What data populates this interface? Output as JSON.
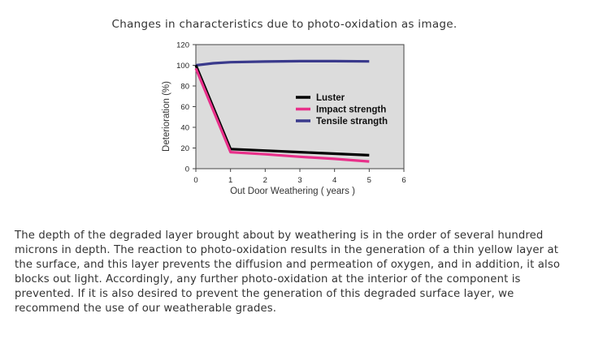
{
  "heading": "Changes in characteristics due to photo-oxidation as image.",
  "body_text": "The depth of the degraded layer brought about by weathering is in the order of several hundred microns in depth. The reaction to photo-oxidation results in the generation of a thin yellow layer at the surface, and this layer prevents the diffusion and permeation of oxygen, and in addition, it also blocks out light. Accordingly, any further photo-oxidation at the interior of the component is prevented. If it is also desired to prevent the generation of this degraded surface layer, we recommend the use of our weatherable grades.",
  "chart_data": {
    "type": "line",
    "title": "",
    "xlabel": "Out Door Weathering ( years )",
    "ylabel": "Deterioration (%)",
    "xlim": [
      0,
      6
    ],
    "ylim": [
      0,
      120
    ],
    "xticks": [
      0,
      1,
      2,
      3,
      4,
      5,
      6
    ],
    "yticks": [
      0,
      20,
      40,
      60,
      80,
      100,
      120
    ],
    "grid": false,
    "plot_background": "#dcdcdc",
    "legend_position": "center-right",
    "series": [
      {
        "name": "Luster",
        "color": "#000000",
        "x": [
          0,
          1,
          2,
          3,
          4,
          5
        ],
        "y": [
          100,
          19,
          17.5,
          16,
          14.5,
          13
        ]
      },
      {
        "name": "Impact strength",
        "color": "#e8308a",
        "x": [
          0,
          1,
          2,
          3,
          4,
          5
        ],
        "y": [
          97,
          16,
          14,
          11.5,
          9.5,
          7
        ]
      },
      {
        "name": "Tensile strangth",
        "color": "#3a3a8c",
        "x": [
          0,
          0.5,
          1,
          2,
          3,
          4,
          5
        ],
        "y": [
          100,
          102,
          103,
          103.6,
          104,
          104,
          103.8
        ]
      }
    ]
  }
}
